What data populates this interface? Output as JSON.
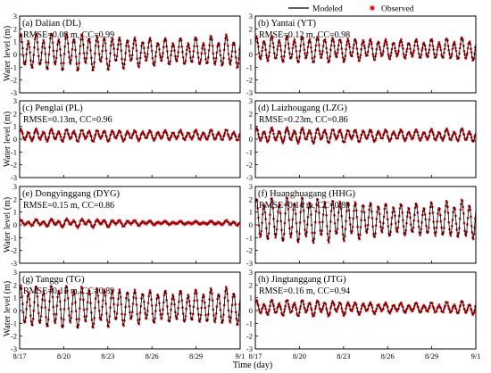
{
  "figure": {
    "xlabel": "Time (day)",
    "ylabel": "Water level (m)",
    "legend": {
      "placement": "top-center",
      "modeled_label": "Modeled",
      "observed_label": "Observed"
    },
    "colors": {
      "modeled": "#000000",
      "observed": "#e8171e"
    }
  },
  "chart_data": [
    {
      "type": "line",
      "title": "(a) Dalian (DL)",
      "stats": "RMSE=0.08 m, CC=0.99",
      "x_unit": "day of August (8/17 to 9/1)",
      "xlim": [
        17,
        32
      ],
      "ylim": [
        -3,
        3
      ],
      "y_ticks": [
        -3,
        -2,
        -1,
        0,
        1,
        2,
        3
      ],
      "x_ticks": [
        17,
        20,
        23,
        26,
        29,
        32
      ],
      "x_tick_labels": [
        "8/17",
        "8/20",
        "8/23",
        "8/26",
        "8/29",
        "9/1"
      ],
      "grid": false,
      "tide": {
        "mean": 0.2,
        "amplitude": [
          1.0,
          1.4
        ],
        "diurnal": 0.3,
        "spring_peaks": [
          20,
          26,
          31
        ]
      },
      "series": [
        {
          "name": "Modeled"
        },
        {
          "name": "Observed"
        }
      ]
    },
    {
      "type": "line",
      "title": "(b) Yantai (YT)",
      "stats": "RMSE=0.12 m, CC=0.98",
      "x_unit": "day of August (8/17 to 9/1)",
      "xlim": [
        17,
        32
      ],
      "ylim": [
        -3,
        3
      ],
      "y_ticks": [
        -3,
        -2,
        -1,
        0,
        1,
        2,
        3
      ],
      "x_ticks": [
        17,
        20,
        23,
        26,
        29,
        32
      ],
      "x_tick_labels": [
        "8/17",
        "8/20",
        "8/23",
        "8/26",
        "8/29",
        "9/1"
      ],
      "grid": false,
      "tide": {
        "mean": 0.4,
        "amplitude": [
          0.7,
          1.0
        ],
        "diurnal": 0.25,
        "spring_peaks": [
          20,
          26,
          31
        ]
      },
      "series": [
        {
          "name": "Modeled"
        },
        {
          "name": "Observed"
        }
      ]
    },
    {
      "type": "line",
      "title": "(c) Penglai (PL)",
      "stats": "RMSE=0.13m, CC=0.96",
      "x_unit": "day of August (8/17 to 9/1)",
      "xlim": [
        17,
        32
      ],
      "ylim": [
        -3,
        3
      ],
      "y_ticks": [
        -3,
        -2,
        -1,
        0,
        1,
        2,
        3
      ],
      "x_ticks": [
        17,
        20,
        23,
        26,
        29,
        32
      ],
      "x_tick_labels": [
        "8/17",
        "8/20",
        "8/23",
        "8/26",
        "8/29",
        "9/1"
      ],
      "grid": false,
      "tide": {
        "mean": 0.3,
        "amplitude": [
          0.35,
          0.45
        ],
        "diurnal": 0.35,
        "spring_peaks": [
          20,
          26,
          31
        ]
      },
      "series": [
        {
          "name": "Modeled"
        },
        {
          "name": "Observed"
        }
      ]
    },
    {
      "type": "line",
      "title": "(d) Laizhougang (LZG)",
      "stats": "RMSE=0.23m, CC=0.86",
      "x_unit": "day of August (8/17 to 9/1)",
      "xlim": [
        17,
        32
      ],
      "ylim": [
        -3,
        3
      ],
      "y_ticks": [
        -3,
        -2,
        -1,
        0,
        1,
        2,
        3
      ],
      "x_ticks": [
        17,
        20,
        23,
        26,
        29,
        32
      ],
      "x_tick_labels": [
        "8/17",
        "8/20",
        "8/23",
        "8/26",
        "8/29",
        "9/1"
      ],
      "grid": false,
      "tide": {
        "mean": 0.3,
        "amplitude": [
          0.4,
          0.55
        ],
        "diurnal": 0.35,
        "spring_peaks": [
          20,
          26,
          31
        ]
      },
      "series": [
        {
          "name": "Modeled"
        },
        {
          "name": "Observed"
        }
      ]
    },
    {
      "type": "line",
      "title": "(e) Dongyinggang (DYG)",
      "stats": "RMSE=0.15 m, CC=0.86",
      "x_unit": "day of August (8/17 to 9/1)",
      "xlim": [
        17,
        32
      ],
      "ylim": [
        -3,
        3
      ],
      "y_ticks": [
        -3,
        -2,
        -1,
        0,
        1,
        2,
        3
      ],
      "x_ticks": [
        17,
        20,
        23,
        26,
        29,
        32
      ],
      "x_tick_labels": [
        "8/17",
        "8/20",
        "8/23",
        "8/26",
        "8/29",
        "9/1"
      ],
      "grid": false,
      "tide": {
        "mean": 0.15,
        "amplitude": [
          0.1,
          0.3
        ],
        "diurnal": 0.6,
        "spring_peaks": [
          21,
          27
        ]
      },
      "series": [
        {
          "name": "Modeled"
        },
        {
          "name": "Observed"
        }
      ]
    },
    {
      "type": "line",
      "title": "(f) Huanghuagang (HHG)",
      "stats": "RMSE=0.14 m, CC=0.89",
      "x_unit": "day of August (8/17 to 9/1)",
      "xlim": [
        17,
        32
      ],
      "ylim": [
        -3,
        3
      ],
      "y_ticks": [
        -3,
        -2,
        -1,
        0,
        1,
        2,
        3
      ],
      "x_ticks": [
        17,
        20,
        23,
        26,
        29,
        32
      ],
      "x_tick_labels": [
        "8/17",
        "8/20",
        "8/23",
        "8/26",
        "8/29",
        "9/1"
      ],
      "grid": false,
      "tide": {
        "mean": 0.4,
        "amplitude": [
          1.2,
          1.7
        ],
        "diurnal": 0.2,
        "spring_peaks": [
          20,
          26,
          31
        ]
      },
      "series": [
        {
          "name": "Modeled"
        },
        {
          "name": "Observed"
        }
      ]
    },
    {
      "type": "line",
      "title": "(g) Tanggu (TG)",
      "stats": "RMSE=0.15 m, CC=0.89",
      "x_unit": "day of August (8/17 to 9/1)",
      "xlim": [
        17,
        32
      ],
      "ylim": [
        -3,
        3
      ],
      "y_ticks": [
        -3,
        -2,
        -1,
        0,
        1,
        2,
        3
      ],
      "x_ticks": [
        17,
        20,
        23,
        26,
        29,
        32
      ],
      "x_tick_labels": [
        "8/17",
        "8/20",
        "8/23",
        "8/26",
        "8/29",
        "9/1"
      ],
      "grid": false,
      "tide": {
        "mean": 0.3,
        "amplitude": [
          1.2,
          1.6
        ],
        "diurnal": 0.2,
        "spring_peaks": [
          20,
          26,
          31
        ]
      },
      "series": [
        {
          "name": "Modeled"
        },
        {
          "name": "Observed"
        }
      ]
    },
    {
      "type": "line",
      "title": "(h) Jingtanggang (JTG)",
      "stats": "RMSE=0.16 m, CC=0.94",
      "x_unit": "day of August (8/17 to 9/1)",
      "xlim": [
        17,
        32
      ],
      "ylim": [
        -3,
        3
      ],
      "y_ticks": [
        -3,
        -2,
        -1,
        0,
        1,
        2,
        3
      ],
      "x_ticks": [
        17,
        20,
        23,
        26,
        29,
        32
      ],
      "x_tick_labels": [
        "8/17",
        "8/20",
        "8/23",
        "8/26",
        "8/29",
        "9/1"
      ],
      "grid": false,
      "tide": {
        "mean": 0.2,
        "amplitude": [
          0.35,
          0.6
        ],
        "diurnal": 0.4,
        "spring_peaks": [
          20,
          26,
          31
        ]
      },
      "series": [
        {
          "name": "Modeled"
        },
        {
          "name": "Observed"
        }
      ]
    }
  ]
}
